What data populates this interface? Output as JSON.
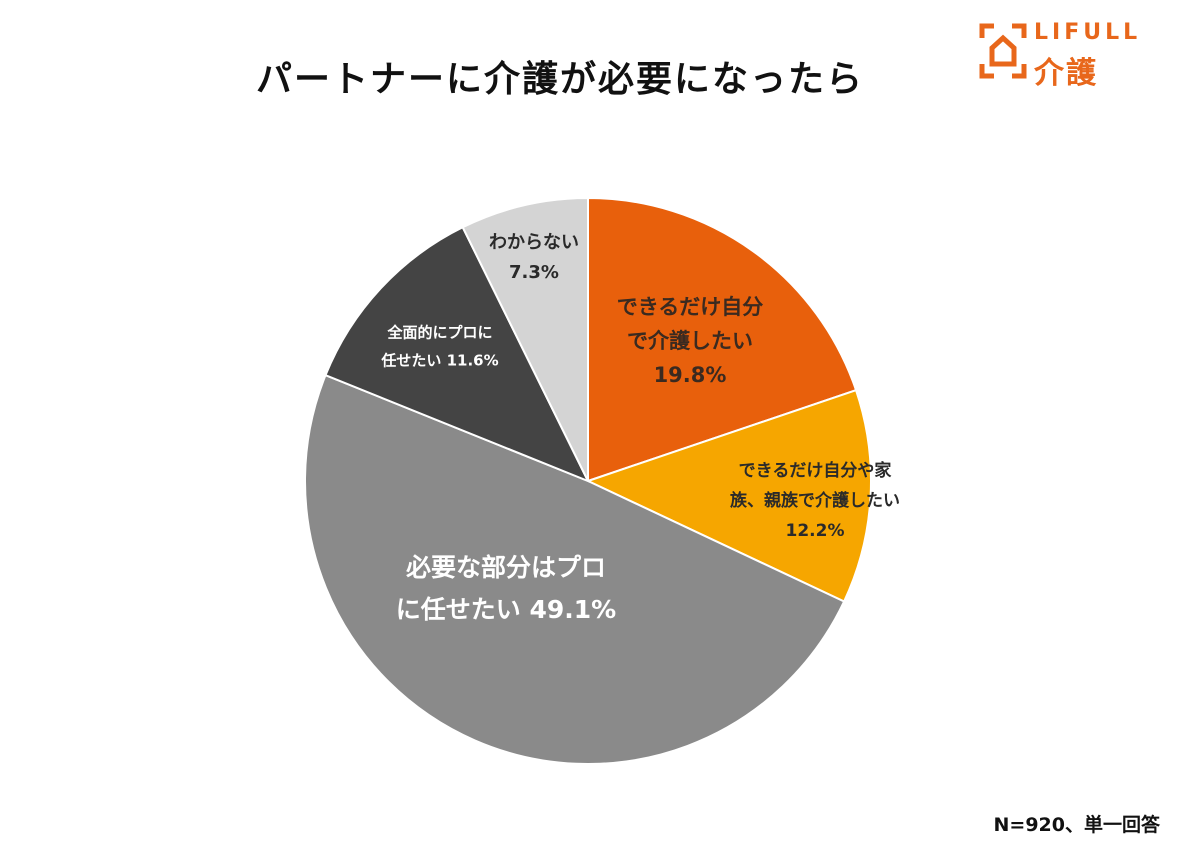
{
  "title": "パートナーに介護が必要になったら",
  "logo": {
    "en": "LIFULL",
    "ja": "介護"
  },
  "footnote": "N=920、単一回答",
  "colors": {
    "brand": "#e8671b"
  },
  "chart_data": {
    "type": "pie",
    "title": "パートナーに介護が必要になったら",
    "slices": [
      {
        "label_lines": [
          "できるだけ自分",
          "で介護したい",
          "19.8%"
        ],
        "value": 19.8,
        "color": "#e8600c",
        "text_color": "#3a2a20"
      },
      {
        "label_lines": [
          "できるだけ自分や家",
          "族、親族で介護したい",
          "12.2%"
        ],
        "value": 12.2,
        "color": "#f6a600",
        "text_color": "#2a2a2a"
      },
      {
        "label_lines": [
          "必要な部分はプロ",
          "に任せたい 49.1%"
        ],
        "value": 49.1,
        "color": "#8a8a8a",
        "text_color": "#ffffff"
      },
      {
        "label_lines": [
          "全面的にプロに",
          "任せたい 11.6%"
        ],
        "value": 11.6,
        "color": "#444444",
        "text_color": "#ffffff"
      },
      {
        "label_lines": [
          "わからない",
          "7.3%"
        ],
        "value": 7.3,
        "color": "#d4d4d4",
        "text_color": "#2a2a2a"
      }
    ]
  }
}
